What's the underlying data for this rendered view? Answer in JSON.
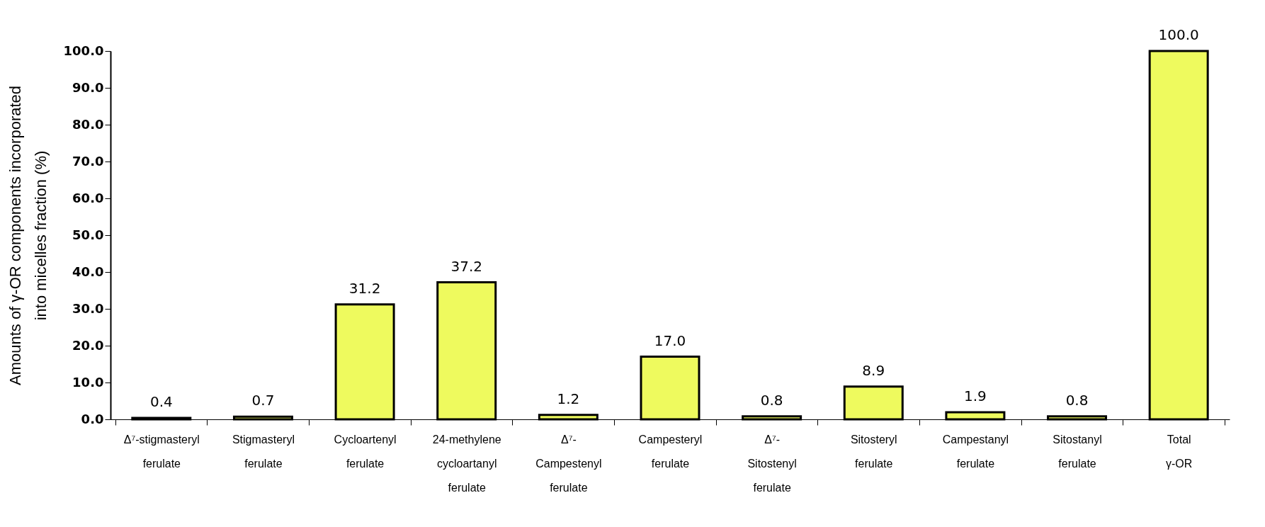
{
  "chart_data": {
    "type": "bar",
    "ylabel": "Amounts of γ-OR components incorporated\ninto micelles fraction (%)",
    "categories": [
      "Δ⁷-stigmasteryl\nferulate",
      "Stigmasteryl\nferulate",
      "Cycloartenyl\nferulate",
      "24-methylene\ncycloartanyl\nferulate",
      "Δ⁷-\nCampestenyl\nferulate",
      "Campesteryl\nferulate",
      "Δ⁷-\nSitostenyl\nferulate",
      "Sitosteryl\nferulate",
      "Campestanyl\nferulate",
      "Sitostanyl\nferulate",
      "Total\nγ-OR"
    ],
    "values": [
      0.4,
      0.7,
      31.2,
      37.2,
      1.2,
      17.0,
      0.8,
      8.9,
      1.9,
      0.8,
      100.0
    ],
    "value_labels": [
      "0.4",
      "0.7",
      "31.2",
      "37.2",
      "1.2",
      "17.0",
      "0.8",
      "8.9",
      "1.9",
      "0.8",
      "100.0"
    ],
    "color": "#eefa5e",
    "ylim": [
      0,
      100
    ],
    "yticks": [
      {
        "value": 0,
        "label": "0.0"
      },
      {
        "value": 10,
        "label": "10.0"
      },
      {
        "value": 20,
        "label": "20.0"
      },
      {
        "value": 30,
        "label": "30.0"
      },
      {
        "value": 40,
        "label": "40.0"
      },
      {
        "value": 50,
        "label": "50.0"
      },
      {
        "value": 60,
        "label": "60.0"
      },
      {
        "value": 70,
        "label": "70.0"
      },
      {
        "value": 80,
        "label": "80.0"
      },
      {
        "value": 90,
        "label": "90.0"
      },
      {
        "value": 100,
        "label": "100.0"
      }
    ],
    "grid": false
  }
}
